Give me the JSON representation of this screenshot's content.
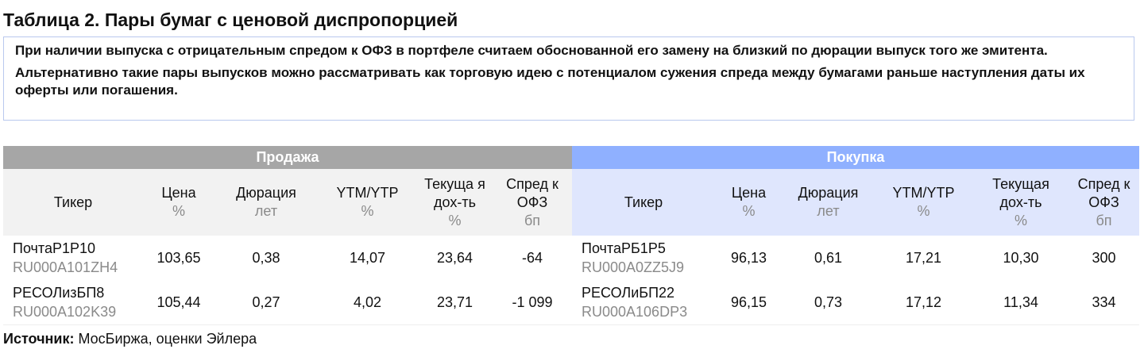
{
  "title": "Таблица 2. Пары бумаг с ценовой диспропорцией",
  "note": [
    "При наличии выпуска с отрицательным спредом к ОФЗ в портфеле считаем обоснованной его замену на близкий по дюрации выпуск того же эмитента.",
    "Альтернативно такие пары выпусков можно рассматривать как торговую идею с потенциалом сужения спреда между бумагами раньше наступления даты их оферты или погашения."
  ],
  "colors": {
    "sell_header": "#a6a6a6",
    "buy_header": "#8fb0ff",
    "sell_sub": "#f2f2f2",
    "buy_sub": "#dfe6fd"
  },
  "groups": {
    "sell": "Продажа",
    "buy": "Покупка"
  },
  "columns_sell": [
    {
      "label": "Тикер",
      "unit": ""
    },
    {
      "label": "Цена",
      "unit": "%"
    },
    {
      "label": "Дюрация",
      "unit": "лет"
    },
    {
      "label": "YTM/YTP",
      "unit": "%"
    },
    {
      "label": "Текуща я дох-ть",
      "unit": "%"
    },
    {
      "label": "Спред к ОФЗ",
      "unit": "бп"
    }
  ],
  "columns_buy": [
    {
      "label": "Тикер",
      "unit": ""
    },
    {
      "label": "Цена",
      "unit": "%"
    },
    {
      "label": "Дюрация",
      "unit": "лет"
    },
    {
      "label": "YTM/YTP",
      "unit": "%"
    },
    {
      "label": "Текущая дох-ть",
      "unit": "%"
    },
    {
      "label": "Спред к ОФЗ",
      "unit": "бп"
    }
  ],
  "rows": [
    {
      "sell": {
        "ticker": "ПочтаР1Р10",
        "isin": "RU000A101ZH4",
        "price": "103,65",
        "duration": "0,38",
        "ytm": "14,07",
        "current": "23,64",
        "spread": "-64"
      },
      "buy": {
        "ticker": "ПочтаРБ1Р5",
        "isin": "RU000A0ZZ5J9",
        "price": "96,13",
        "duration": "0,61",
        "ytm": "17,21",
        "current": "10,30",
        "spread": "300"
      }
    },
    {
      "sell": {
        "ticker": "РЕСОЛизБП8",
        "isin": "RU000A102K39",
        "price": "105,44",
        "duration": "0,27",
        "ytm": "4,02",
        "current": "23,71",
        "spread": "-1 099"
      },
      "buy": {
        "ticker": "РЕСОЛиБП22",
        "isin": "RU000A106DP3",
        "price": "96,15",
        "duration": "0,73",
        "ytm": "17,12",
        "current": "11,34",
        "spread": "334"
      }
    }
  ],
  "source": {
    "label": "Источник:",
    "text": " МосБиржа, оценки Эйлера"
  }
}
